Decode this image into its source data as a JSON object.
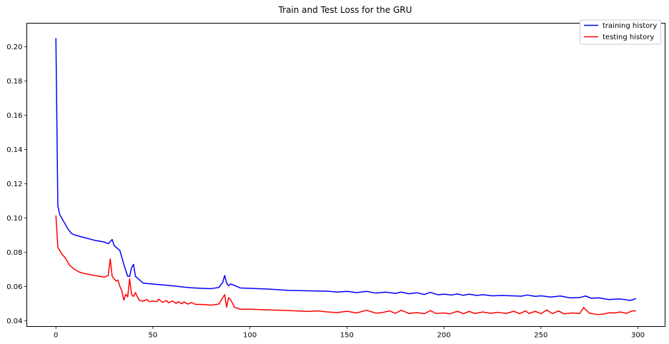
{
  "chart_data": {
    "type": "line",
    "title": "Train and Test Loss for the GRU",
    "xlabel": "",
    "ylabel": "",
    "xlim": [
      -15,
      314
    ],
    "ylim": [
      0.0367,
      0.2137
    ],
    "xticks": [
      0,
      50,
      100,
      150,
      200,
      250,
      300
    ],
    "yticks": [
      0.04,
      0.06,
      0.08,
      0.1,
      0.12,
      0.14,
      0.16,
      0.18,
      0.2
    ],
    "ytick_labels": [
      "0.04",
      "0.06",
      "0.08",
      "0.10",
      "0.12",
      "0.14",
      "0.16",
      "0.18",
      "0.20"
    ],
    "grid": false,
    "legend_position": "top-right",
    "series": [
      {
        "name": "training history",
        "color": "#0000ff",
        "points": [
          [
            0,
            0.205
          ],
          [
            1,
            0.107
          ],
          [
            2,
            0.102
          ],
          [
            4,
            0.098
          ],
          [
            6,
            0.094
          ],
          [
            8,
            0.091
          ],
          [
            10,
            0.09
          ],
          [
            15,
            0.0885
          ],
          [
            20,
            0.087
          ],
          [
            25,
            0.086
          ],
          [
            27,
            0.085
          ],
          [
            29,
            0.0875
          ],
          [
            30,
            0.084
          ],
          [
            33,
            0.081
          ],
          [
            35,
            0.073
          ],
          [
            37,
            0.066
          ],
          [
            38,
            0.066
          ],
          [
            39,
            0.071
          ],
          [
            40,
            0.073
          ],
          [
            41,
            0.066
          ],
          [
            43,
            0.064
          ],
          [
            45,
            0.062
          ],
          [
            50,
            0.0615
          ],
          [
            55,
            0.061
          ],
          [
            60,
            0.0605
          ],
          [
            65,
            0.0598
          ],
          [
            70,
            0.0593
          ],
          [
            75,
            0.059
          ],
          [
            80,
            0.0588
          ],
          [
            84,
            0.0595
          ],
          [
            86,
            0.0625
          ],
          [
            87,
            0.0665
          ],
          [
            88,
            0.062
          ],
          [
            89,
            0.0605
          ],
          [
            90,
            0.0615
          ],
          [
            92,
            0.0607
          ],
          [
            95,
            0.0592
          ],
          [
            100,
            0.059
          ],
          [
            110,
            0.0585
          ],
          [
            120,
            0.0578
          ],
          [
            130,
            0.0575
          ],
          [
            140,
            0.0573
          ],
          [
            145,
            0.0568
          ],
          [
            150,
            0.0572
          ],
          [
            155,
            0.0565
          ],
          [
            160,
            0.0572
          ],
          [
            165,
            0.0562
          ],
          [
            170,
            0.0568
          ],
          [
            175,
            0.056
          ],
          [
            178,
            0.0568
          ],
          [
            182,
            0.0558
          ],
          [
            186,
            0.0564
          ],
          [
            190,
            0.0554
          ],
          [
            193,
            0.0566
          ],
          [
            197,
            0.0552
          ],
          [
            200,
            0.0556
          ],
          [
            204,
            0.0551
          ],
          [
            207,
            0.0557
          ],
          [
            210,
            0.0549
          ],
          [
            213,
            0.0556
          ],
          [
            217,
            0.0548
          ],
          [
            220,
            0.0553
          ],
          [
            225,
            0.0546
          ],
          [
            230,
            0.0548
          ],
          [
            235,
            0.0546
          ],
          [
            240,
            0.0544
          ],
          [
            243,
            0.0551
          ],
          [
            247,
            0.0543
          ],
          [
            250,
            0.0546
          ],
          [
            255,
            0.0539
          ],
          [
            260,
            0.0545
          ],
          [
            265,
            0.0534
          ],
          [
            270,
            0.0536
          ],
          [
            273,
            0.0545
          ],
          [
            276,
            0.0532
          ],
          [
            280,
            0.0534
          ],
          [
            285,
            0.0524
          ],
          [
            290,
            0.0528
          ],
          [
            293,
            0.0525
          ],
          [
            296,
            0.0519
          ],
          [
            299,
            0.053
          ]
        ]
      },
      {
        "name": "testing history",
        "color": "#ff0000",
        "points": [
          [
            0,
            0.1015
          ],
          [
            1,
            0.083
          ],
          [
            3,
            0.079
          ],
          [
            5,
            0.0765
          ],
          [
            7,
            0.0725
          ],
          [
            9,
            0.0705
          ],
          [
            12,
            0.0685
          ],
          [
            15,
            0.0675
          ],
          [
            20,
            0.0665
          ],
          [
            25,
            0.0655
          ],
          [
            27,
            0.0665
          ],
          [
            28,
            0.0762
          ],
          [
            29,
            0.066
          ],
          [
            31,
            0.0632
          ],
          [
            32,
            0.0638
          ],
          [
            33,
            0.06
          ],
          [
            34,
            0.0575
          ],
          [
            35,
            0.052
          ],
          [
            36,
            0.0555
          ],
          [
            37,
            0.054
          ],
          [
            38,
            0.0645
          ],
          [
            39,
            0.0555
          ],
          [
            40,
            0.0542
          ],
          [
            41,
            0.0565
          ],
          [
            42,
            0.054
          ],
          [
            43,
            0.052
          ],
          [
            45,
            0.0515
          ],
          [
            47,
            0.0525
          ],
          [
            48,
            0.0512
          ],
          [
            50,
            0.0516
          ],
          [
            52,
            0.0512
          ],
          [
            53,
            0.0527
          ],
          [
            55,
            0.0508
          ],
          [
            57,
            0.0519
          ],
          [
            58,
            0.0505
          ],
          [
            60,
            0.0516
          ],
          [
            62,
            0.0502
          ],
          [
            63,
            0.0512
          ],
          [
            65,
            0.05
          ],
          [
            66,
            0.0511
          ],
          [
            68,
            0.0498
          ],
          [
            70,
            0.0507
          ],
          [
            72,
            0.0496
          ],
          [
            75,
            0.0496
          ],
          [
            80,
            0.0492
          ],
          [
            84,
            0.0498
          ],
          [
            86,
            0.0535
          ],
          [
            87,
            0.0553
          ],
          [
            88,
            0.048
          ],
          [
            89,
            0.0535
          ],
          [
            90,
            0.0525
          ],
          [
            92,
            0.048
          ],
          [
            95,
            0.0468
          ],
          [
            100,
            0.0468
          ],
          [
            110,
            0.0464
          ],
          [
            120,
            0.046
          ],
          [
            130,
            0.0455
          ],
          [
            135,
            0.0458
          ],
          [
            140,
            0.0452
          ],
          [
            145,
            0.0448
          ],
          [
            150,
            0.0456
          ],
          [
            155,
            0.0446
          ],
          [
            160,
            0.0462
          ],
          [
            165,
            0.0445
          ],
          [
            168,
            0.0448
          ],
          [
            172,
            0.0458
          ],
          [
            175,
            0.0444
          ],
          [
            178,
            0.0462
          ],
          [
            182,
            0.0443
          ],
          [
            186,
            0.0448
          ],
          [
            190,
            0.0442
          ],
          [
            193,
            0.046
          ],
          [
            196,
            0.0443
          ],
          [
            200,
            0.0446
          ],
          [
            203,
            0.0441
          ],
          [
            207,
            0.0456
          ],
          [
            210,
            0.0442
          ],
          [
            213,
            0.0455
          ],
          [
            216,
            0.0443
          ],
          [
            220,
            0.0452
          ],
          [
            224,
            0.0444
          ],
          [
            228,
            0.045
          ],
          [
            232,
            0.0443
          ],
          [
            236,
            0.0456
          ],
          [
            239,
            0.0442
          ],
          [
            242,
            0.0458
          ],
          [
            244,
            0.0443
          ],
          [
            247,
            0.0456
          ],
          [
            250,
            0.0442
          ],
          [
            253,
            0.0463
          ],
          [
            256,
            0.0442
          ],
          [
            259,
            0.0458
          ],
          [
            262,
            0.0441
          ],
          [
            266,
            0.0446
          ],
          [
            270,
            0.0443
          ],
          [
            272,
            0.0478
          ],
          [
            275,
            0.0445
          ],
          [
            279,
            0.0437
          ],
          [
            282,
            0.0439
          ],
          [
            285,
            0.0447
          ],
          [
            288,
            0.0446
          ],
          [
            291,
            0.0452
          ],
          [
            294,
            0.0444
          ],
          [
            297,
            0.0458
          ],
          [
            299,
            0.0458
          ]
        ]
      }
    ]
  }
}
